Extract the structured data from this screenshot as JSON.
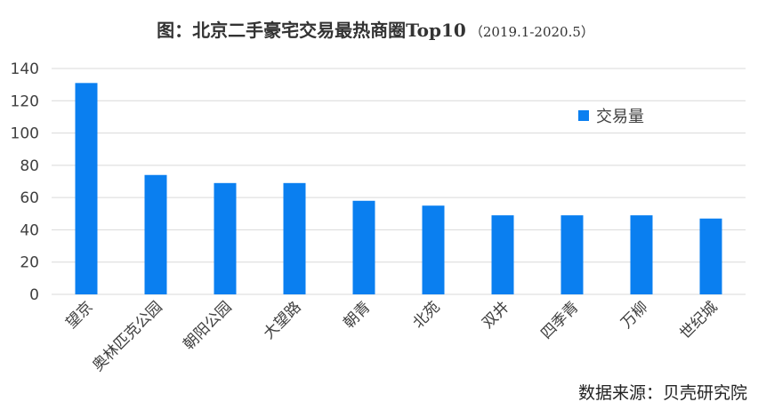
{
  "chart_data": {
    "type": "bar",
    "title": "图：北京二手豪宅交易最热商圈Top10",
    "subtitle": "（2019.1-2020.5）",
    "categories": [
      "望京",
      "奥林匹克公园",
      "朝阳公园",
      "大望路",
      "朝青",
      "北苑",
      "双井",
      "四季青",
      "万柳",
      "世纪城"
    ],
    "series": [
      {
        "name": "交易量",
        "values": [
          131,
          74,
          69,
          69,
          58,
          55,
          49,
          49,
          49,
          47
        ]
      }
    ],
    "ylim": [
      0,
      140
    ],
    "yticks": [
      0,
      20,
      40,
      60,
      80,
      100,
      120,
      140
    ],
    "grid": true,
    "legend_position": "top-right",
    "bar_color": "#0a7ff0"
  },
  "source_text": "数据来源：贝壳研究院"
}
